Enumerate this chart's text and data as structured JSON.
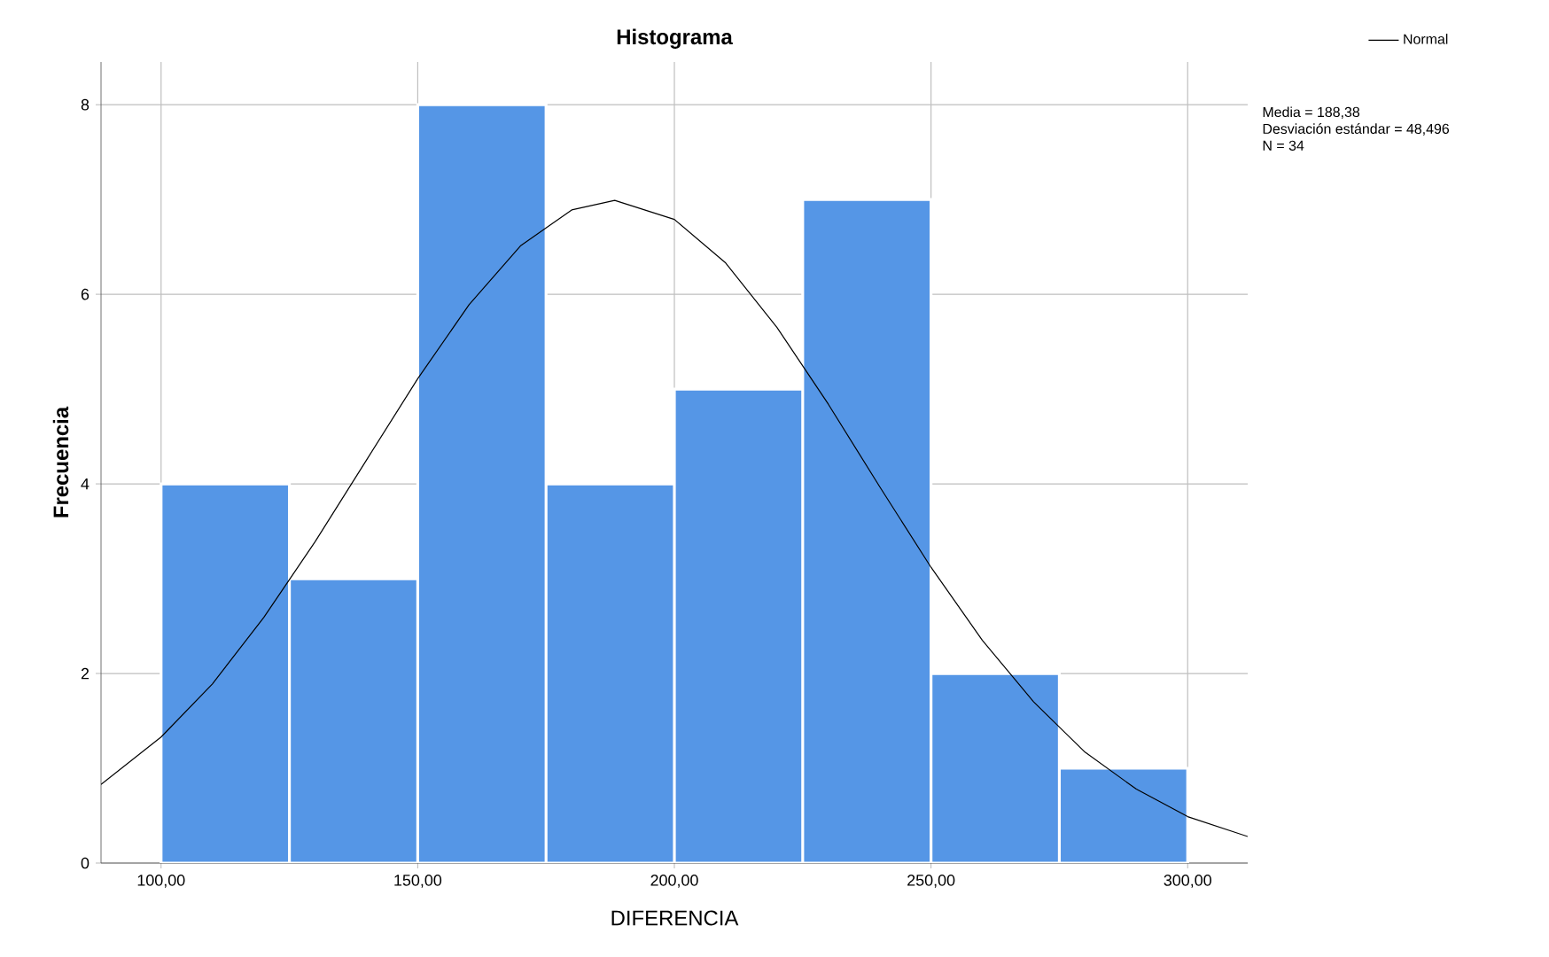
{
  "chart_data": {
    "type": "histogram",
    "title": "Histograma",
    "xlabel": "DIFERENCIA",
    "ylabel": "Frecuencia",
    "bins": [
      100,
      125,
      150,
      175,
      200,
      225,
      250,
      275,
      300
    ],
    "values": [
      4,
      3,
      8,
      4,
      5,
      7,
      2,
      1
    ],
    "color": "#5596e6",
    "series": [
      {
        "name": "Normal",
        "type": "line",
        "color": "#000000",
        "x": [
          88.3,
          100,
          110,
          120,
          130,
          140,
          150,
          160,
          170,
          180,
          188.38,
          200,
          210,
          220,
          230,
          240,
          250,
          260,
          270,
          280,
          290,
          300,
          311.7
        ],
        "values": [
          0.83,
          1.33,
          1.89,
          2.59,
          3.39,
          4.25,
          5.11,
          5.89,
          6.51,
          6.89,
          6.99,
          6.79,
          6.33,
          5.65,
          4.84,
          3.97,
          3.12,
          2.35,
          1.7,
          1.17,
          0.78,
          0.49,
          0.28
        ]
      }
    ],
    "xlim": [
      88.3,
      311.7
    ],
    "ylim": [
      0,
      8.45
    ],
    "xticks": [
      {
        "value": 100,
        "label": "100,00"
      },
      {
        "value": 150,
        "label": "150,00"
      },
      {
        "value": 200,
        "label": "200,00"
      },
      {
        "value": 250,
        "label": "250,00"
      },
      {
        "value": 300,
        "label": "300,00"
      }
    ],
    "yticks": [
      0,
      2,
      4,
      6,
      8
    ],
    "grid": true,
    "legend": "top right",
    "annotations": [
      "Media = 188,38",
      "Desviación estándar = 48,496",
      "N = 34"
    ]
  }
}
